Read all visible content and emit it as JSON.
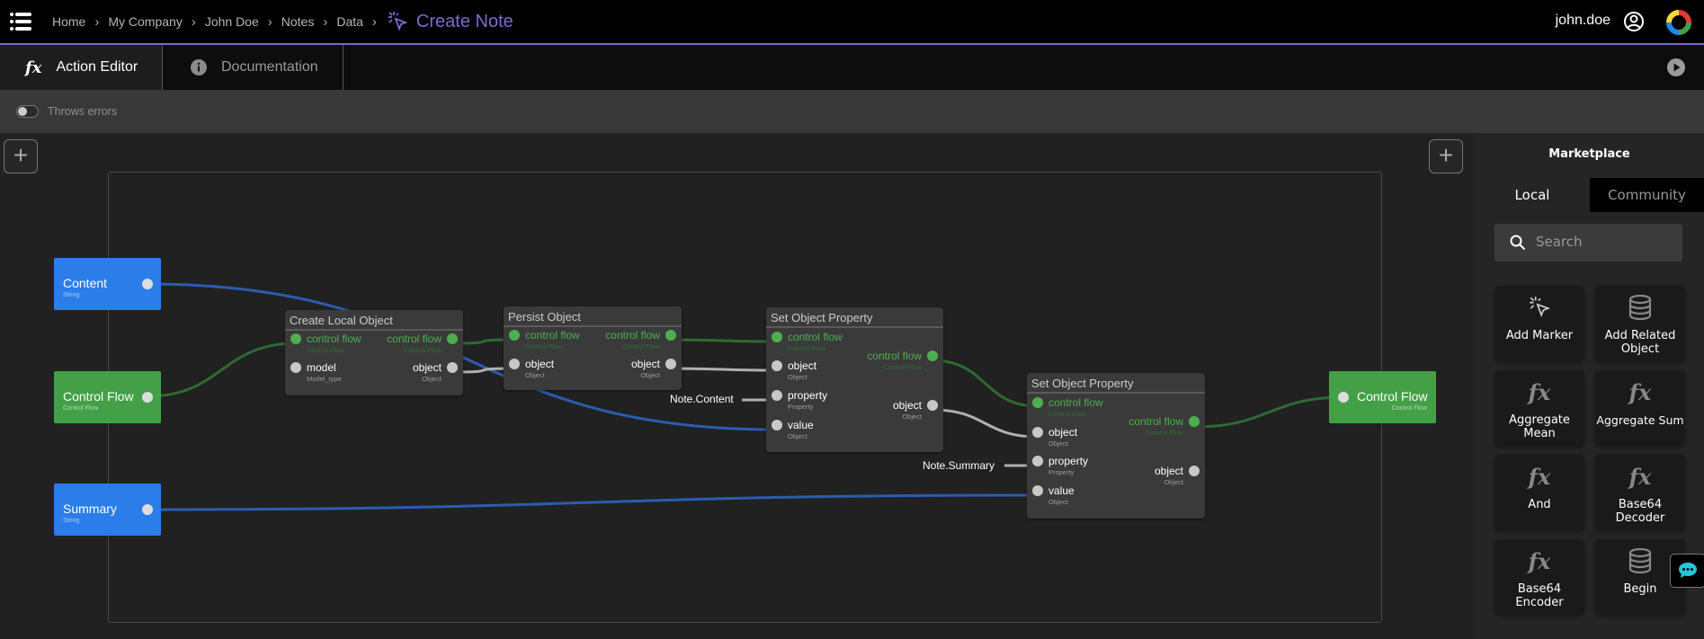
{
  "header": {
    "breadcrumbs": [
      "Home",
      "My Company",
      "John Doe",
      "Notes",
      "Data"
    ],
    "current": "Create Note",
    "username": "john.doe",
    "accent": "#7d6ad0"
  },
  "tabs": [
    {
      "label": "Action Editor",
      "icon": "fx-icon"
    },
    {
      "label": "Documentation",
      "icon": "info-icon"
    }
  ],
  "toolbar": {
    "throws_errors_label": "Throws errors",
    "throws_errors": false
  },
  "canvas": {
    "inputs": [
      {
        "id": "content",
        "title": "Content",
        "type": "String",
        "color": "#2b7de9"
      },
      {
        "id": "control-flow-in",
        "title": "Control Flow",
        "type": "Control Flow",
        "color": "#43a047"
      },
      {
        "id": "summary",
        "title": "Summary",
        "type": "String",
        "color": "#2b7de9"
      }
    ],
    "output": {
      "title": "Control Flow",
      "type": "Control Flow",
      "color": "#43a047"
    },
    "nodes": [
      {
        "id": "clo",
        "title": "Create Local Object",
        "inputs": [
          {
            "label": "control flow",
            "type": "Control Flow",
            "kind": "cf"
          },
          {
            "label": "model",
            "type": "Model_type",
            "kind": "ob"
          }
        ],
        "outputs": [
          {
            "label": "control flow",
            "type": "Control Flow",
            "kind": "cf"
          },
          {
            "label": "object",
            "type": "Object",
            "kind": "ob"
          }
        ]
      },
      {
        "id": "po",
        "title": "Persist Object",
        "inputs": [
          {
            "label": "control flow",
            "type": "Control Flow",
            "kind": "cf"
          },
          {
            "label": "object",
            "type": "Object",
            "kind": "ob"
          }
        ],
        "outputs": [
          {
            "label": "control flow",
            "type": "Control Flow",
            "kind": "cf"
          },
          {
            "label": "object",
            "type": "Object",
            "kind": "ob"
          }
        ]
      },
      {
        "id": "sop1",
        "title": "Set Object Property",
        "inputs": [
          {
            "label": "control flow",
            "type": "Control Flow",
            "kind": "cf"
          },
          {
            "label": "object",
            "type": "Object",
            "kind": "ob"
          },
          {
            "label": "property",
            "type": "Property",
            "kind": "ob"
          },
          {
            "label": "value",
            "type": "Object",
            "kind": "ob"
          }
        ],
        "outputs": [
          {
            "label": "control flow",
            "type": "Control Flow",
            "kind": "cf"
          },
          {
            "label": "object",
            "type": "Object",
            "kind": "ob"
          }
        ]
      },
      {
        "id": "sop2",
        "title": "Set Object Property",
        "inputs": [
          {
            "label": "control flow",
            "type": "Control Flow",
            "kind": "cf"
          },
          {
            "label": "object",
            "type": "Object",
            "kind": "ob"
          },
          {
            "label": "property",
            "type": "Property",
            "kind": "ob"
          },
          {
            "label": "value",
            "type": "Object",
            "kind": "ob"
          }
        ],
        "outputs": [
          {
            "label": "control flow",
            "type": "Control Flow",
            "kind": "cf"
          },
          {
            "label": "object",
            "type": "Object",
            "kind": "ob"
          }
        ]
      }
    ],
    "constants": [
      {
        "id": "c1",
        "value": "Note.Content"
      },
      {
        "id": "c2",
        "value": "Note.Summary"
      }
    ],
    "colors": {
      "control_flow": "#2e6b33",
      "object": "#b0b0b0",
      "string": "#2a5db0"
    }
  },
  "sidebar": {
    "title": "Marketplace",
    "tabs": [
      "Local",
      "Community"
    ],
    "active_tab": "Local",
    "search_placeholder": "Search",
    "items": [
      {
        "label": "Add Marker",
        "icon": "cursor-click-icon"
      },
      {
        "label": "Add Related Object",
        "icon": "database-icon"
      },
      {
        "label": "Aggregate Mean",
        "icon": "fx-icon"
      },
      {
        "label": "Aggregate Sum",
        "icon": "fx-icon"
      },
      {
        "label": "And",
        "icon": "fx-icon"
      },
      {
        "label": "Base64 Decoder",
        "icon": "fx-icon"
      },
      {
        "label": "Base64 Encoder",
        "icon": "fx-icon"
      },
      {
        "label": "Begin",
        "icon": "database-icon"
      }
    ]
  }
}
